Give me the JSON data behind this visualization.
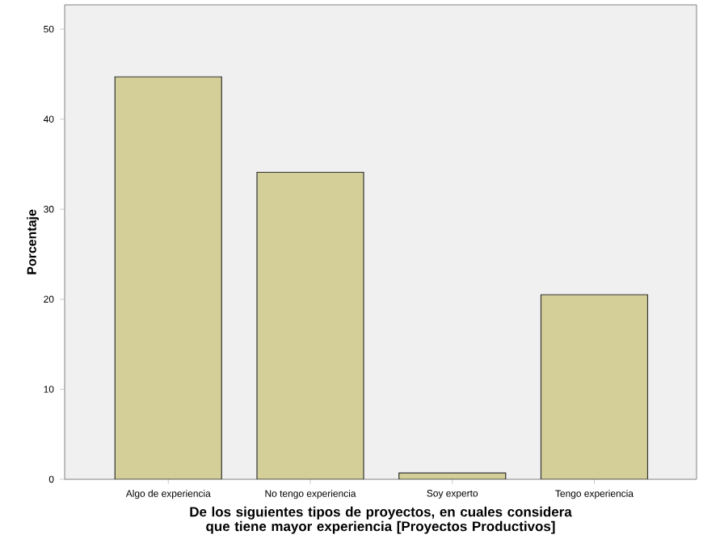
{
  "chart_data": {
    "type": "bar",
    "xlabel": "De los siguientes tipos de proyectos, en cuales considera que tiene mayor experiencia [Proyectos Productivos]",
    "ylabel": "Porcentaje",
    "categories": [
      "Algo de experiencia",
      "No tengo experiencia",
      "Soy experto",
      "Tengo experiencia"
    ],
    "values": [
      44.7,
      34.1,
      0.7,
      20.5
    ],
    "color": "#d4cf98",
    "ylim": [
      0,
      52.7
    ],
    "yticks": [
      0,
      10,
      20,
      30,
      40,
      50
    ],
    "grid": false
  }
}
